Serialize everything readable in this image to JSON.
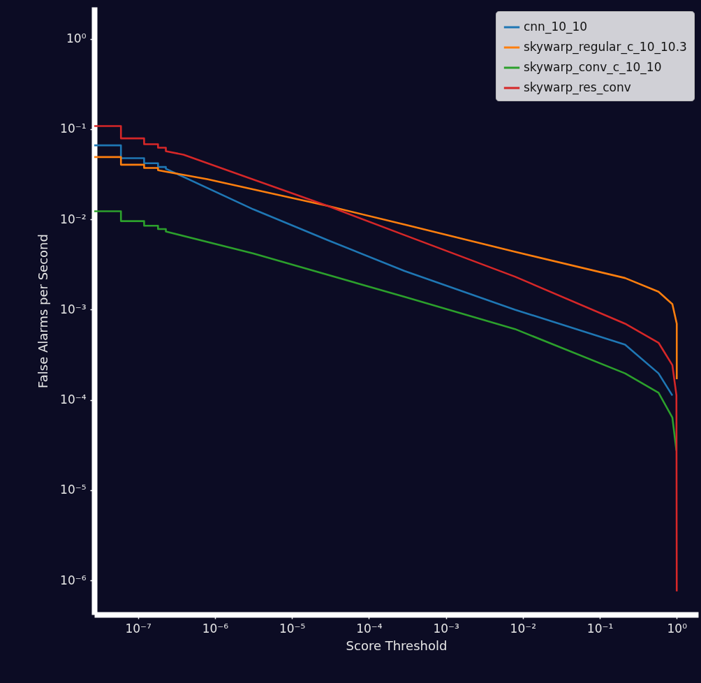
{
  "chart_data": {
    "type": "line",
    "xlabel": "Score Threshold",
    "ylabel": "False Alarms per Second",
    "log": "xy",
    "grid": false,
    "legend": "top right",
    "line_style": "solid",
    "xlim": [
      2.7e-08,
      1.9
    ],
    "ylim": [
      4.2e-07,
      2.25
    ],
    "xticks": [
      {
        "value": 1e-07,
        "label": "10⁻⁷"
      },
      {
        "value": 1e-06,
        "label": "10⁻⁶"
      },
      {
        "value": 1e-05,
        "label": "10⁻⁵"
      },
      {
        "value": 0.0001,
        "label": "10⁻⁴"
      },
      {
        "value": 0.001,
        "label": "10⁻³"
      },
      {
        "value": 0.01,
        "label": "10⁻²"
      },
      {
        "value": 0.1,
        "label": "10⁻¹"
      },
      {
        "value": 1,
        "label": "10⁰"
      }
    ],
    "yticks": [
      {
        "value": 1e-06,
        "label": "10⁻⁶"
      },
      {
        "value": 1e-05,
        "label": "10⁻⁵"
      },
      {
        "value": 0.0001,
        "label": "10⁻⁴"
      },
      {
        "value": 0.001,
        "label": "10⁻³"
      },
      {
        "value": 0.01,
        "label": "10⁻²"
      },
      {
        "value": 0.1,
        "label": "10⁻¹"
      },
      {
        "value": 1,
        "label": "10⁰"
      }
    ],
    "series": [
      {
        "name": "cnn_10_10",
        "color": "#1f77b4",
        "x": [
          2.7e-08,
          6e-08,
          6e-08,
          1.2e-07,
          1.2e-07,
          1.82e-07,
          1.82e-07,
          2.3e-07,
          2.3e-07,
          3.16e-06,
          2.9e-05,
          0.00029,
          0.0079,
          0.213,
          0.58,
          0.877
        ],
        "values": [
          0.066,
          0.066,
          0.0476,
          0.0476,
          0.0418,
          0.0418,
          0.038,
          0.038,
          0.0364,
          0.0129,
          0.0059,
          0.00268,
          0.001,
          0.00041,
          0.000197,
          0.000112
        ]
      },
      {
        "name": "skywarp_regular_c_10_10.3",
        "color": "#ff7f0e",
        "x": [
          2.7e-08,
          6e-08,
          6e-08,
          1.2e-07,
          1.2e-07,
          1.82e-07,
          1.82e-07,
          7.9e-07,
          2.9e-05,
          0.00029,
          0.0079,
          0.213,
          0.58,
          0.877,
          1.0,
          1.0
        ],
        "values": [
          0.049,
          0.049,
          0.0403,
          0.0403,
          0.0371,
          0.0371,
          0.035,
          0.0279,
          0.0141,
          0.00877,
          0.00437,
          0.00224,
          0.00158,
          0.00115,
          0.0007,
          0.00017
        ]
      },
      {
        "name": "skywarp_conv_c_10_10",
        "color": "#2ca02c",
        "x": [
          2.7e-08,
          6e-08,
          6e-08,
          1.2e-07,
          1.2e-07,
          1.82e-07,
          1.82e-07,
          2.3e-07,
          2.3e-07,
          3.16e-06,
          0.00029,
          0.0079,
          0.213,
          0.58,
          0.877,
          0.99
        ],
        "values": [
          0.0123,
          0.0123,
          0.00957,
          0.00957,
          0.0085,
          0.0085,
          0.0078,
          0.0078,
          0.00733,
          0.00418,
          0.00139,
          0.00061,
          0.000197,
          0.00012,
          6.4e-05,
          2.74e-05
        ]
      },
      {
        "name": "skywarp_res_conv",
        "color": "#d62728",
        "x": [
          2.7e-08,
          6e-08,
          6e-08,
          1.2e-07,
          1.2e-07,
          1.82e-07,
          1.82e-07,
          2.3e-07,
          2.3e-07,
          3.9e-07,
          2.9e-05,
          0.00029,
          0.0079,
          0.213,
          0.58,
          0.877,
          0.99,
          1.0
        ],
        "values": [
          0.108,
          0.108,
          0.0789,
          0.0789,
          0.068,
          0.068,
          0.0622,
          0.0622,
          0.0569,
          0.052,
          0.0141,
          0.0067,
          0.00232,
          0.0007,
          0.00043,
          0.000243,
          0.000113,
          7.6e-07
        ]
      }
    ]
  }
}
